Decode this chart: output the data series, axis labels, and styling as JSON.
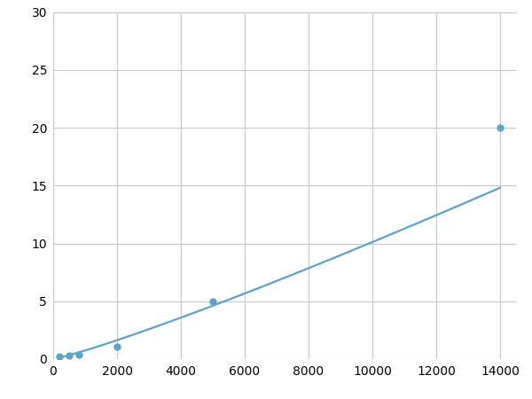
{
  "x_points": [
    200,
    500,
    800,
    2000,
    5000,
    14000
  ],
  "y_points": [
    0.2,
    0.3,
    0.4,
    1.1,
    5.0,
    20.0
  ],
  "line_color": "#5ba3c9",
  "marker_color": "#5ba3c9",
  "marker_size": 5,
  "line_width": 1.6,
  "xlim": [
    0,
    14500
  ],
  "ylim": [
    0,
    30
  ],
  "xticks": [
    0,
    2000,
    4000,
    6000,
    8000,
    10000,
    12000,
    14000
  ],
  "yticks": [
    0,
    5,
    10,
    15,
    20,
    25,
    30
  ],
  "grid_color": "#c8c8c8",
  "background_color": "#ffffff",
  "tick_label_fontsize": 10,
  "power_law_a": 0.00015,
  "power_law_b": 1.42
}
